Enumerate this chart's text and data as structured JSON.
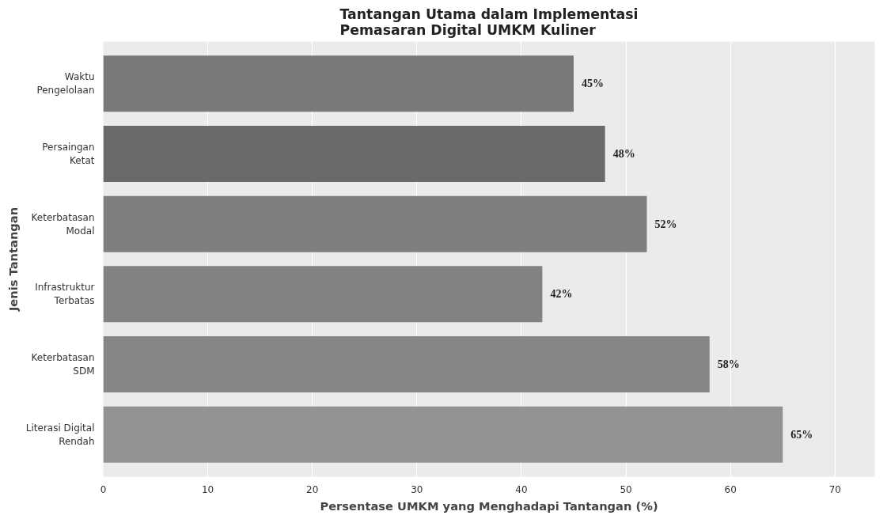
{
  "chart_data": {
    "type": "bar",
    "orientation": "horizontal",
    "title": "Tantangan Utama dalam Implementasi\nPemasaran Digital UMKM Kuliner",
    "xlabel": "Persentase UMKM yang Menghadapi Tantangan (%)",
    "ylabel": "Jenis Tantangan",
    "categories": [
      "Waktu\nPengelolaan",
      "Persaingan\nKetat",
      "Keterbatasan\nModal",
      "Infrastruktur\nTerbatas",
      "Keterbatasan\nSDM",
      "Literasi Digital\nRendah"
    ],
    "values": [
      45,
      48,
      52,
      42,
      58,
      65
    ],
    "colors": [
      "#797979",
      "#6a6a6a",
      "#7f7f7f",
      "#828282",
      "#868686",
      "#939393"
    ],
    "value_labels": [
      "45%",
      "48%",
      "52%",
      "42%",
      "58%",
      "65%"
    ],
    "xlim": [
      0,
      73.8
    ],
    "xticks": [
      0,
      10,
      20,
      30,
      40,
      50,
      60,
      70
    ],
    "grid": "x"
  }
}
